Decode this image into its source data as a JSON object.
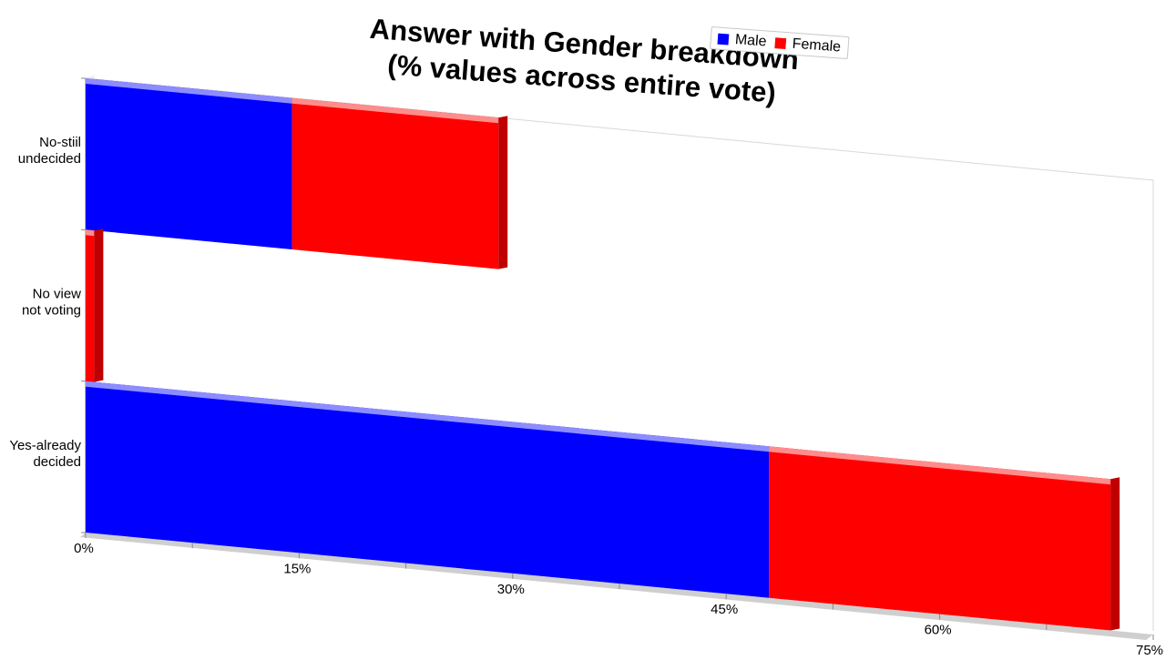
{
  "chart_data": {
    "type": "bar",
    "orientation": "horizontal",
    "stacked": true,
    "title": [
      "Answer with Gender breakdown",
      "(% values across entire vote)"
    ],
    "categories": [
      [
        "No-stiil",
        "undecided"
      ],
      [
        "No view",
        "not voting"
      ],
      [
        "Yes-already",
        "decided"
      ]
    ],
    "series": [
      {
        "name": "Male",
        "color": "#0000ff",
        "values": [
          14.5,
          0,
          48.0
        ]
      },
      {
        "name": "Female",
        "color": "#ff0000",
        "values": [
          14.5,
          0.6,
          24.0
        ]
      }
    ],
    "xlim": [
      0,
      75
    ],
    "xticks": [
      "0%",
      "15%",
      "30%",
      "45%",
      "60%",
      "75%"
    ],
    "legend_position": "top-right",
    "grid": false
  }
}
